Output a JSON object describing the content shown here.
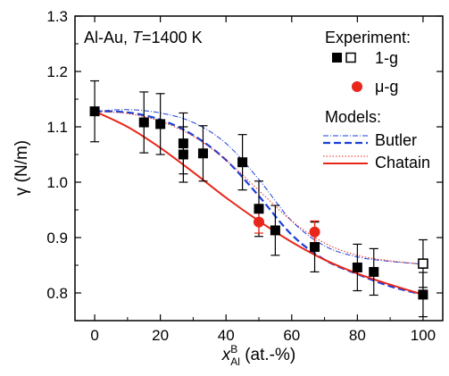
{
  "chart_data": {
    "type": "scatter",
    "annotation": {
      "system": "Al-Au, ",
      "t_symbol": "T",
      "t_value": "=1400 K"
    },
    "xlabel": {
      "var": "x",
      "sup": "B",
      "sub": "Al",
      "rest": " (at.-%)"
    },
    "ylabel": "γ (N/m)",
    "xlim": [
      -6,
      106
    ],
    "ylim": [
      0.75,
      1.3
    ],
    "x_ticks": [
      0,
      20,
      40,
      60,
      80,
      100
    ],
    "y_ticks": [
      0.8,
      0.9,
      1.0,
      1.1,
      1.2,
      1.3
    ],
    "y_tick_labels": [
      "0.8",
      "0.9",
      "1.0",
      "1.1",
      "1.2",
      "1.3"
    ],
    "legend": {
      "experiment_title": "Experiment:",
      "one_g": "1-g",
      "mu_g": "μ-g",
      "models_title": "Models:",
      "butler": "Butler",
      "chatain": "Chatain"
    },
    "colors": {
      "blue": "#1a3fd9",
      "red": "#e8261a",
      "black": "#000000"
    },
    "series": [
      {
        "name": "1-g",
        "marker": "filled-square",
        "points": [
          {
            "x": 0,
            "y": 1.128,
            "err": 0.055
          },
          {
            "x": 15,
            "y": 1.108,
            "err": 0.055
          },
          {
            "x": 20,
            "y": 1.105,
            "err": 0.055
          },
          {
            "x": 27,
            "y": 1.07,
            "err": 0.055
          },
          {
            "x": 27,
            "y": 1.05,
            "err": 0.05
          },
          {
            "x": 33,
            "y": 1.052,
            "err": 0.05
          },
          {
            "x": 45,
            "y": 1.036,
            "err": 0.05
          },
          {
            "x": 50,
            "y": 0.952,
            "err": 0.05
          },
          {
            "x": 55,
            "y": 0.913,
            "err": 0.045
          },
          {
            "x": 67,
            "y": 0.883,
            "err": 0.045
          },
          {
            "x": 80,
            "y": 0.846,
            "err": 0.042
          },
          {
            "x": 85,
            "y": 0.838,
            "err": 0.042
          },
          {
            "x": 100,
            "y": 0.797,
            "err": 0.04
          }
        ]
      },
      {
        "name": "1-g",
        "marker": "open-square",
        "points": [
          {
            "x": 100,
            "y": 0.853,
            "err": 0.043
          }
        ]
      },
      {
        "name": "μ-g",
        "marker": "red-circle",
        "points": [
          {
            "x": 50,
            "y": 0.928,
            "err": 0.02
          },
          {
            "x": 67,
            "y": 0.91,
            "err": 0.02
          }
        ]
      }
    ],
    "models": [
      {
        "name": "Butler",
        "style": "dash-dot-thin",
        "color": "#1a3fd9",
        "x": [
          0,
          10,
          20,
          30,
          40,
          50,
          60,
          70,
          80,
          90,
          100
        ],
        "y": [
          1.128,
          1.131,
          1.125,
          1.108,
          1.07,
          1.005,
          0.93,
          0.885,
          0.865,
          0.857,
          0.852
        ]
      },
      {
        "name": "Butler",
        "style": "dashed",
        "color": "#1a3fd9",
        "x": [
          0,
          10,
          20,
          30,
          40,
          50,
          60,
          70,
          80,
          90,
          100
        ],
        "y": [
          1.128,
          1.126,
          1.113,
          1.085,
          1.04,
          0.975,
          0.905,
          0.86,
          0.834,
          0.812,
          0.797
        ]
      },
      {
        "name": "Chatain",
        "style": "dotted",
        "color": "#e8261a",
        "x": [
          0,
          10,
          20,
          30,
          40,
          50,
          60,
          70,
          80,
          90,
          100
        ],
        "y": [
          1.128,
          1.124,
          1.11,
          1.083,
          1.04,
          0.985,
          0.93,
          0.89,
          0.868,
          0.858,
          0.852
        ]
      },
      {
        "name": "Chatain",
        "style": "solid",
        "color": "#e8261a",
        "x": [
          0,
          10,
          20,
          30,
          40,
          50,
          60,
          70,
          80,
          90,
          100
        ],
        "y": [
          1.128,
          1.1,
          1.062,
          1.018,
          0.972,
          0.93,
          0.892,
          0.86,
          0.835,
          0.815,
          0.797
        ]
      }
    ]
  }
}
